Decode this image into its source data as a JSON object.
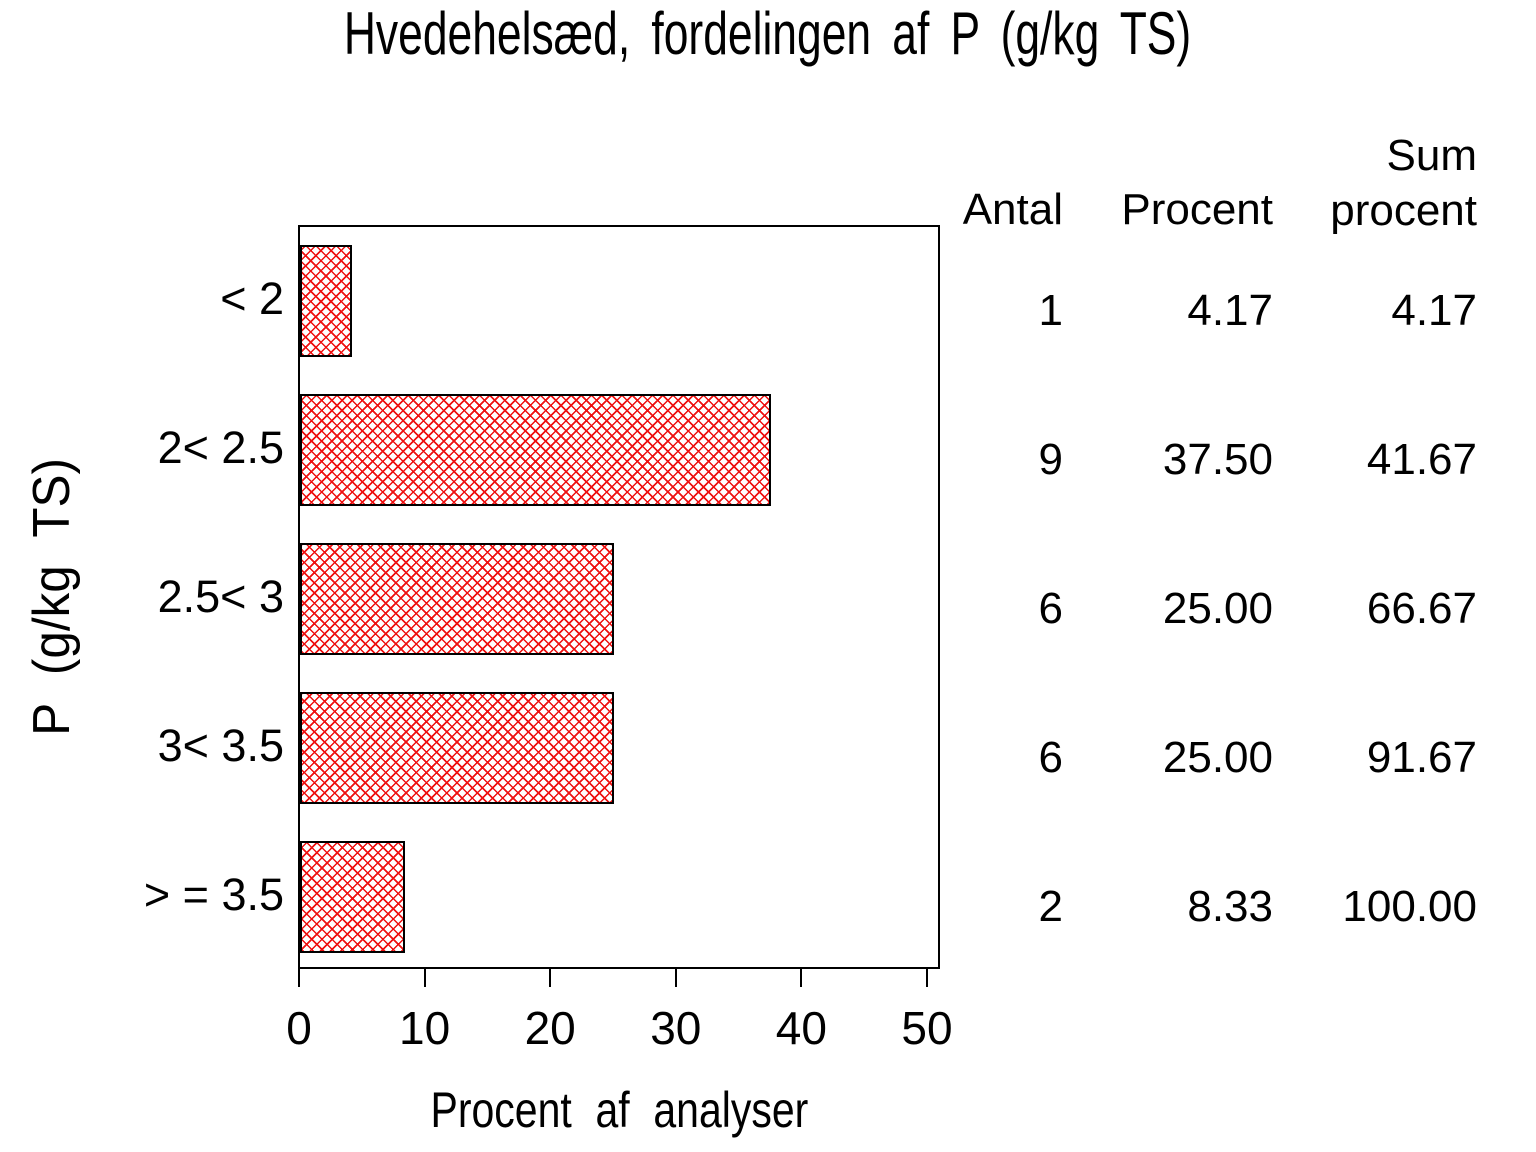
{
  "page": {
    "background": "#ffffff",
    "text_color": "#000000"
  },
  "chart_data": {
    "type": "bar",
    "orientation": "horizontal",
    "title": "Hvedehelsæd, fordelingen af P (g/kg TS)",
    "xlabel": "Procent af analyser",
    "ylabel": "P (g/kg TS)",
    "xlim": [
      0,
      50
    ],
    "x_ticks": [
      "0",
      "10",
      "20",
      "30",
      "40",
      "50"
    ],
    "categories": [
      "< 2",
      "2< 2.5",
      "2.5< 3",
      "3< 3.5",
      "> = 3.5"
    ],
    "values": [
      4.17,
      37.5,
      25.0,
      25.0,
      8.33
    ],
    "grid": false,
    "bar_style": {
      "fill_pattern": "diagonal-crosshatch",
      "hatch_color": "#ee1111",
      "border_color": "#000000",
      "fill_background": "#ffffff"
    }
  },
  "table": {
    "columns": [
      {
        "key": "antal",
        "lines": [
          "Antal"
        ]
      },
      {
        "key": "procent",
        "lines": [
          "Procent"
        ]
      },
      {
        "key": "sum_procent",
        "lines": [
          "Sum",
          "procent"
        ]
      }
    ],
    "rows": [
      {
        "antal": "1",
        "procent": "4.17",
        "sum_procent": "4.17"
      },
      {
        "antal": "9",
        "procent": "37.50",
        "sum_procent": "41.67"
      },
      {
        "antal": "6",
        "procent": "25.00",
        "sum_procent": "66.67"
      },
      {
        "antal": "6",
        "procent": "25.00",
        "sum_procent": "91.67"
      },
      {
        "antal": "2",
        "procent": "8.33",
        "sum_procent": "100.00"
      }
    ]
  }
}
